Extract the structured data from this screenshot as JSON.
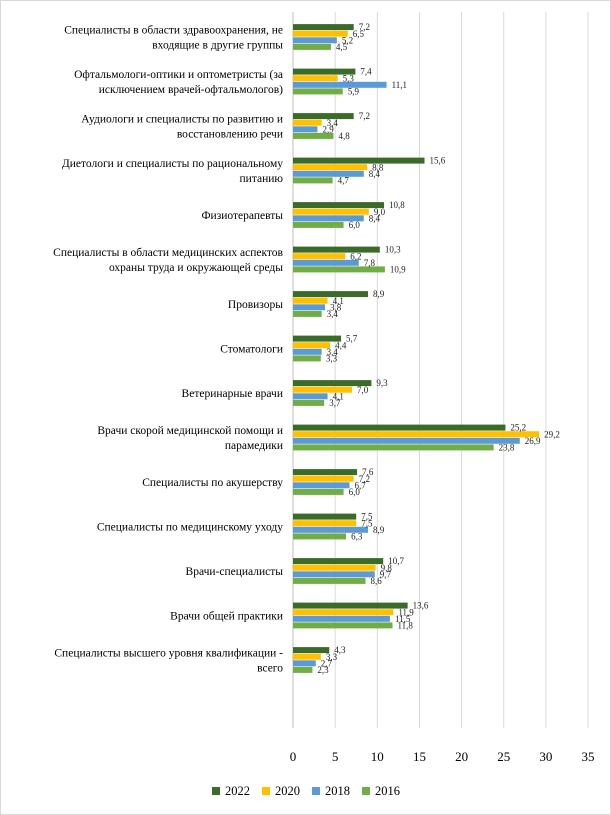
{
  "chart_data": {
    "type": "bar",
    "orientation": "horizontal",
    "title": "",
    "xlabel": "",
    "ylabel": "",
    "xlim": [
      0,
      35
    ],
    "x_ticks": [
      "0",
      "5",
      "10",
      "15",
      "20",
      "25",
      "30",
      "35"
    ],
    "grid": "vertical",
    "legend_position": "bottom",
    "categories": [
      [
        "Специалисты в области здравоохранения, не",
        "входящие в другие группы"
      ],
      [
        "Офтальмологи-оптики и оптометристы (за",
        "исключением врачей-офтальмологов)"
      ],
      [
        "Аудиологи и специалисты по развитию и",
        "восстановлению речи"
      ],
      [
        "Диетологи и специалисты по рациональному",
        "питанию"
      ],
      [
        "Физиотерапевты"
      ],
      [
        "Специалисты в области медицинских аспектов",
        "охраны труда и окружающей среды"
      ],
      [
        "Провизоры"
      ],
      [
        "Стоматологи"
      ],
      [
        "Ветеринарные врачи"
      ],
      [
        "Врачи скорой медицинской помощи и",
        "парамедики"
      ],
      [
        "Специалисты по акушерству"
      ],
      [
        "Специалисты по медицинскому уходу"
      ],
      [
        "Врачи-специалисты"
      ],
      [
        "Врачи общей практики"
      ],
      [
        "Специалисты высшего уровня квалификации -",
        "всего"
      ]
    ],
    "series": [
      {
        "name": "2022",
        "color": "#3a6b28",
        "values": [
          7.2,
          7.4,
          7.2,
          15.6,
          10.8,
          10.3,
          8.9,
          5.7,
          9.3,
          25.2,
          7.6,
          7.5,
          10.7,
          13.6,
          4.3
        ],
        "labels": [
          "7,2",
          "7,4",
          "7,2",
          "15,6",
          "10,8",
          "10,3",
          "8,9",
          "5,7",
          "9,3",
          "25,2",
          "7,6",
          "7,5",
          "10,7",
          "13,6",
          "4,3"
        ]
      },
      {
        "name": "2020",
        "color": "#ffc000",
        "values": [
          6.5,
          5.3,
          3.4,
          8.8,
          9.0,
          6.2,
          4.1,
          4.4,
          7.0,
          29.2,
          7.2,
          7.5,
          9.8,
          11.9,
          3.3
        ],
        "labels": [
          "6,5",
          "5,3",
          "3,4",
          "8,8",
          "9,0",
          "6,2",
          "4,1",
          "4,4",
          "7,0",
          "29,2",
          "7,2",
          "7,5",
          "9,8",
          "11,9",
          "3,3"
        ]
      },
      {
        "name": "2018",
        "color": "#5b9bd5",
        "values": [
          5.2,
          11.1,
          2.9,
          8.4,
          8.4,
          7.8,
          3.8,
          3.4,
          4.1,
          26.9,
          6.7,
          8.9,
          9.7,
          11.5,
          2.7
        ],
        "labels": [
          "5,2",
          "11,1",
          "2,9",
          "8,4",
          "8,4",
          "7,8",
          "3,8",
          "3,4",
          "4,1",
          "26,9",
          "6,7",
          "8,9",
          "9,7",
          "11,5",
          "2,7"
        ]
      },
      {
        "name": "2016",
        "color": "#70ad47",
        "values": [
          4.5,
          5.9,
          4.8,
          4.7,
          6.0,
          10.9,
          3.4,
          3.3,
          3.7,
          23.8,
          6.0,
          6.3,
          8.6,
          11.8,
          2.3
        ],
        "labels": [
          "4,5",
          "5,9",
          "4,8",
          "4,7",
          "6,0",
          "10,9",
          "3,4",
          "3,3",
          "3,7",
          "23,8",
          "6,0",
          "6,3",
          "8,6",
          "11,8",
          "2,3"
        ]
      }
    ]
  }
}
